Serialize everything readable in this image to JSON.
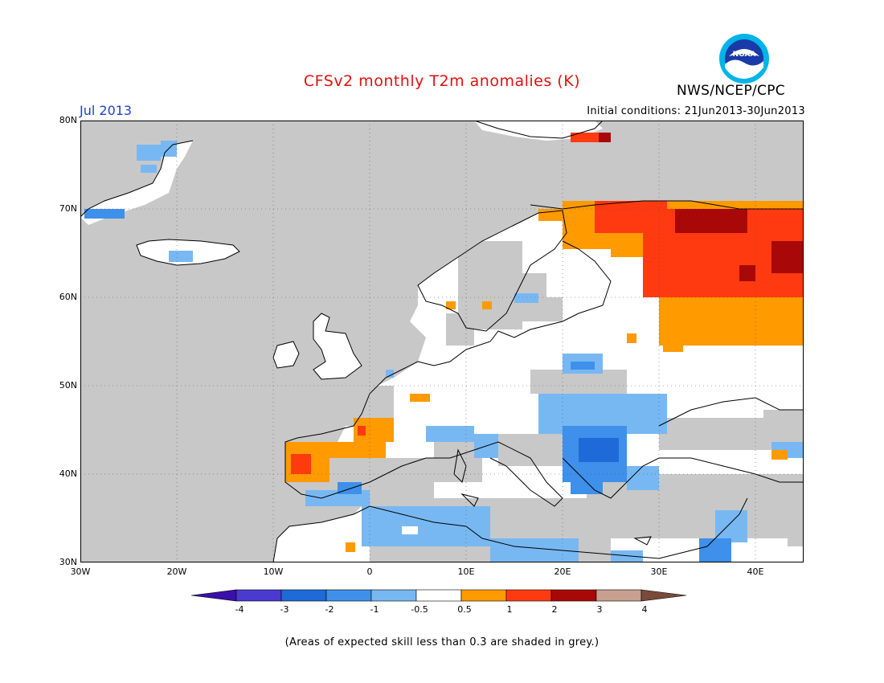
{
  "header": {
    "title": "CFSv2 monthly T2m anomalies (K)",
    "agency": "NWS/NCEP/CPC",
    "month": "Jul 2013",
    "initial_conditions": "Initial conditions: 21Jun2013-30Jun2013",
    "logo_text": "NOAA"
  },
  "axes": {
    "lat_labels": [
      "80N",
      "70N",
      "60N",
      "50N",
      "40N",
      "30N"
    ],
    "lon_labels": [
      "30W",
      "20W",
      "10W",
      "0",
      "10E",
      "20E",
      "30E",
      "40E"
    ]
  },
  "colorbar": {
    "labels": [
      "-4",
      "-3",
      "-2",
      "-1",
      "-0.5",
      "0.5",
      "1",
      "2",
      "3",
      "4"
    ],
    "colors": [
      "#3a10a8",
      "#4a3ad0",
      "#1e6ad8",
      "#3e90ea",
      "#78b8f2",
      "#ffffff",
      "#ff9a00",
      "#ff3a10",
      "#a80808",
      "#c8a090",
      "#7a4a3a"
    ]
  },
  "map_colors": {
    "ocean_grey": "#c8c8c8",
    "land_white": "#ffffff",
    "neg_light": "#78b8f2",
    "neg_mid": "#3e90ea",
    "neg_strong": "#1e6ad8",
    "pos_light": "#ff9a00",
    "pos_mid": "#ff3a10",
    "pos_strong": "#a80808"
  },
  "footnote": "(Areas of expected skill less than 0.3 are shaded in grey.)"
}
